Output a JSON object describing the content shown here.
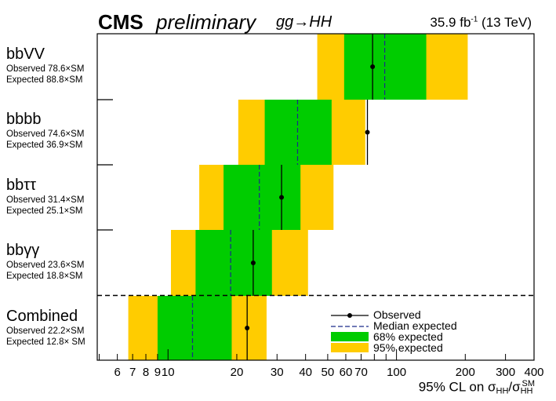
{
  "header": {
    "experiment": "CMS",
    "status": "preliminary",
    "process": "gg→HH",
    "lumi_value": "35.9 fb",
    "lumi_exp": "-1",
    "energy": "(13 TeV)"
  },
  "channels": [
    {
      "name": "bbVV",
      "observed_label": "Observed 78.6×SM",
      "expected_label": "Expected 88.8×SM"
    },
    {
      "name": "bbbb",
      "observed_label": "Observed 74.6×SM",
      "expected_label": "Expected 36.9×SM"
    },
    {
      "name": "bbττ",
      "observed_label": "Observed 31.4×SM",
      "expected_label": "Expected 25.1×SM"
    },
    {
      "name": "bbγγ",
      "observed_label": "Observed 23.6×SM",
      "expected_label": "Expected 18.8×SM"
    },
    {
      "name": "Combined",
      "observed_label": "Observed 22.2×SM",
      "expected_label": "Expected 12.8× SM"
    }
  ],
  "legend": {
    "observed": "Observed",
    "median": "Median expected",
    "band68": "68% expected",
    "band95": "95% expected"
  },
  "axis": {
    "xlabel_main": "95% CL on σ",
    "xlabel_sub_num": "HH",
    "xlabel_sub_den": "HH",
    "xlabel_sup_den": "SM"
  },
  "colors": {
    "band68": "#00cc00",
    "band95": "#ffcc00",
    "observed": "#000000"
  },
  "chart_data": {
    "type": "bar",
    "title": "CMS preliminary gg→HH",
    "xlabel": "95% CL on σ_HH/σ_HH^SM",
    "xscale": "log",
    "xlim": [
      4.9,
      400
    ],
    "x_ticks": [
      "6",
      "7",
      "8",
      "9",
      "10",
      "20",
      "30",
      "40",
      "50",
      "60",
      "70",
      "100",
      "200",
      "300",
      "400"
    ],
    "x_tick_values": [
      6,
      7,
      8,
      9,
      10,
      20,
      30,
      40,
      50,
      60,
      70,
      100,
      200,
      300,
      400
    ],
    "categories": [
      "bbVV",
      "bbbb",
      "bbττ",
      "bbγγ",
      "Combined"
    ],
    "series": [
      {
        "name": "Observed",
        "values": [
          78.6,
          74.6,
          31.4,
          23.6,
          22.2
        ]
      },
      {
        "name": "Median expected",
        "values": [
          88.8,
          36.9,
          25.1,
          18.8,
          12.8
        ]
      },
      {
        "name": "68% expected",
        "low": [
          59,
          26.5,
          17.5,
          13.2,
          9.0
        ],
        "high": [
          135,
          52,
          38,
          28.5,
          19.0
        ]
      },
      {
        "name": "95% expected",
        "low": [
          45,
          20.3,
          13.7,
          10.3,
          6.7
        ],
        "high": [
          205,
          73,
          53,
          41,
          27.0
        ]
      }
    ],
    "legend_position": "bottom-right"
  }
}
